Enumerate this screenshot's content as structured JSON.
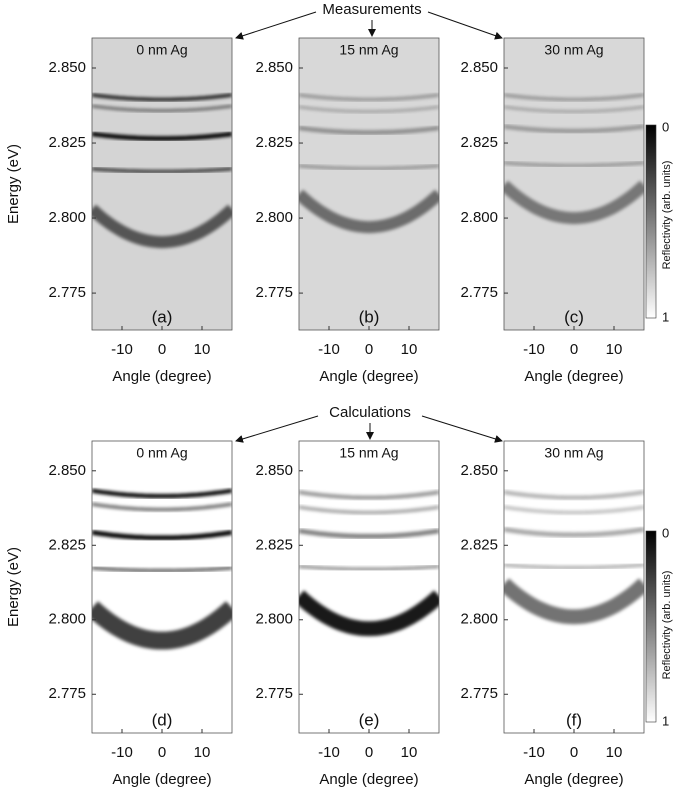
{
  "annotations": {
    "measurements": "Measurements",
    "calculations": "Calculations"
  },
  "colorbar": {
    "label": "Reflectivity (arb. units)",
    "ticks": [
      0,
      1
    ]
  },
  "chart_data": [
    {
      "type": "heatmap",
      "title": "0 nm Ag",
      "panel_label": "(a)",
      "ylabel": "Energy (eV)",
      "xlabel": "Angle (degree)",
      "color": "#d4d4d4",
      "xlim": [
        -17.5,
        17.5
      ],
      "ylim": [
        2.7627,
        2.86
      ],
      "xticks": [
        -10,
        0,
        10
      ],
      "yticks": [
        {
          "value": 2.775,
          "label": "2.775"
        },
        {
          "value": 2.8,
          "label": "2.800"
        },
        {
          "value": 2.825,
          "label": "2.825"
        },
        {
          "value": 2.85,
          "label": "2.850"
        }
      ],
      "bands": [
        {
          "energy": 2.8395,
          "curvature": 5e-06,
          "width": 0.0012,
          "strength": 0.85
        },
        {
          "energy": 2.8358,
          "curvature": 5e-06,
          "width": 0.001,
          "strength": 0.5
        },
        {
          "energy": 2.8265,
          "curvature": 5e-06,
          "width": 0.0015,
          "strength": 1
        },
        {
          "energy": 2.8155,
          "curvature": 3e-06,
          "width": 0.0012,
          "strength": 0.7
        },
        {
          "energy": 2.792,
          "curvature": 3.6e-05,
          "width": 0.004,
          "strength": 0.6
        }
      ]
    },
    {
      "type": "heatmap",
      "title": "15 nm Ag",
      "panel_label": "(b)",
      "xlabel": "Angle (degree)",
      "color": "#d8d8d8",
      "xlim": [
        -17.5,
        17.5
      ],
      "ylim": [
        2.7627,
        2.86
      ],
      "xticks": [
        -10,
        0,
        10
      ],
      "yticks": [
        {
          "value": 2.775,
          "label": "2.775"
        },
        {
          "value": 2.8,
          "label": "2.800"
        },
        {
          "value": 2.825,
          "label": "2.825"
        },
        {
          "value": 2.85,
          "label": "2.850"
        }
      ],
      "bands": [
        {
          "energy": 2.8395,
          "curvature": 5e-06,
          "width": 0.0012,
          "strength": 0.3
        },
        {
          "energy": 2.8355,
          "curvature": 5e-06,
          "width": 0.001,
          "strength": 0.25
        },
        {
          "energy": 2.8285,
          "curvature": 5e-06,
          "width": 0.0015,
          "strength": 0.35
        },
        {
          "energy": 2.8165,
          "curvature": 3e-06,
          "width": 0.0012,
          "strength": 0.3
        },
        {
          "energy": 2.797,
          "curvature": 3.6e-05,
          "width": 0.004,
          "strength": 0.5
        }
      ]
    },
    {
      "type": "heatmap",
      "title": "30 nm Ag",
      "panel_label": "(c)",
      "xlabel": "Angle (degree)",
      "color": "#d8d8d8",
      "xlim": [
        -17.5,
        17.5
      ],
      "ylim": [
        2.7627,
        2.86
      ],
      "xticks": [
        -10,
        0,
        10
      ],
      "yticks": [
        {
          "value": 2.775,
          "label": "2.775"
        },
        {
          "value": 2.8,
          "label": "2.800"
        },
        {
          "value": 2.825,
          "label": "2.825"
        },
        {
          "value": 2.85,
          "label": "2.850"
        }
      ],
      "bands": [
        {
          "energy": 2.8395,
          "curvature": 5e-06,
          "width": 0.0012,
          "strength": 0.3
        },
        {
          "energy": 2.8355,
          "curvature": 5e-06,
          "width": 0.001,
          "strength": 0.25
        },
        {
          "energy": 2.829,
          "curvature": 5e-06,
          "width": 0.0015,
          "strength": 0.3
        },
        {
          "energy": 2.8175,
          "curvature": 3e-06,
          "width": 0.0012,
          "strength": 0.3
        },
        {
          "energy": 2.8,
          "curvature": 3.6e-05,
          "width": 0.004,
          "strength": 0.45
        }
      ]
    },
    {
      "type": "heatmap",
      "title": "0 nm Ag",
      "panel_label": "(d)",
      "ylabel": "Energy (eV)",
      "xlabel": "Angle (degree)",
      "color": "#ffffff",
      "xlim": [
        -17.5,
        17.5
      ],
      "ylim": [
        2.762,
        2.86
      ],
      "xticks": [
        -10,
        0,
        10
      ],
      "yticks": [
        {
          "value": 2.775,
          "label": "2.775"
        },
        {
          "value": 2.8,
          "label": "2.800"
        },
        {
          "value": 2.825,
          "label": "2.825"
        },
        {
          "value": 2.85,
          "label": "2.850"
        }
      ],
      "bands": [
        {
          "energy": 2.8415,
          "curvature": 6e-06,
          "width": 0.0014,
          "strength": 1
        },
        {
          "energy": 2.837,
          "curvature": 6e-06,
          "width": 0.0012,
          "strength": 0.55
        },
        {
          "energy": 2.8275,
          "curvature": 6e-06,
          "width": 0.0016,
          "strength": 1
        },
        {
          "energy": 2.8165,
          "curvature": 3e-06,
          "width": 0.0012,
          "strength": 0.6
        },
        {
          "energy": 2.793,
          "curvature": 3.6e-05,
          "width": 0.006,
          "strength": 0.75
        }
      ]
    },
    {
      "type": "heatmap",
      "title": "15 nm Ag",
      "panel_label": "(e)",
      "xlabel": "Angle (degree)",
      "color": "#ffffff",
      "xlim": [
        -17.5,
        17.5
      ],
      "ylim": [
        2.762,
        2.86
      ],
      "xticks": [
        -10,
        0,
        10
      ],
      "yticks": [
        {
          "value": 2.775,
          "label": "2.775"
        },
        {
          "value": 2.8,
          "label": "2.800"
        },
        {
          "value": 2.825,
          "label": "2.825"
        },
        {
          "value": 2.85,
          "label": "2.850"
        }
      ],
      "bands": [
        {
          "energy": 2.841,
          "curvature": 6e-06,
          "width": 0.0014,
          "strength": 0.4
        },
        {
          "energy": 2.836,
          "curvature": 6e-06,
          "width": 0.0012,
          "strength": 0.35
        },
        {
          "energy": 2.828,
          "curvature": 6e-06,
          "width": 0.0016,
          "strength": 0.5
        },
        {
          "energy": 2.817,
          "curvature": 3e-06,
          "width": 0.0012,
          "strength": 0.4
        },
        {
          "energy": 2.797,
          "curvature": 3.6e-05,
          "width": 0.005,
          "strength": 0.9
        }
      ]
    },
    {
      "type": "heatmap",
      "title": "30 nm Ag",
      "panel_label": "(f)",
      "xlabel": "Angle (degree)",
      "color": "#ffffff",
      "xlim": [
        -17.5,
        17.5
      ],
      "ylim": [
        2.762,
        2.86
      ],
      "xticks": [
        -10,
        0,
        10
      ],
      "yticks": [
        {
          "value": 2.775,
          "label": "2.775"
        },
        {
          "value": 2.8,
          "label": "2.800"
        },
        {
          "value": 2.825,
          "label": "2.825"
        },
        {
          "value": 2.85,
          "label": "2.850"
        }
      ],
      "bands": [
        {
          "energy": 2.841,
          "curvature": 6e-06,
          "width": 0.0014,
          "strength": 0.3
        },
        {
          "energy": 2.836,
          "curvature": 6e-06,
          "width": 0.0012,
          "strength": 0.25
        },
        {
          "energy": 2.8285,
          "curvature": 6e-06,
          "width": 0.0016,
          "strength": 0.35
        },
        {
          "energy": 2.8175,
          "curvature": 3e-06,
          "width": 0.0012,
          "strength": 0.3
        },
        {
          "energy": 2.801,
          "curvature": 3.6e-05,
          "width": 0.005,
          "strength": 0.55
        }
      ]
    }
  ]
}
